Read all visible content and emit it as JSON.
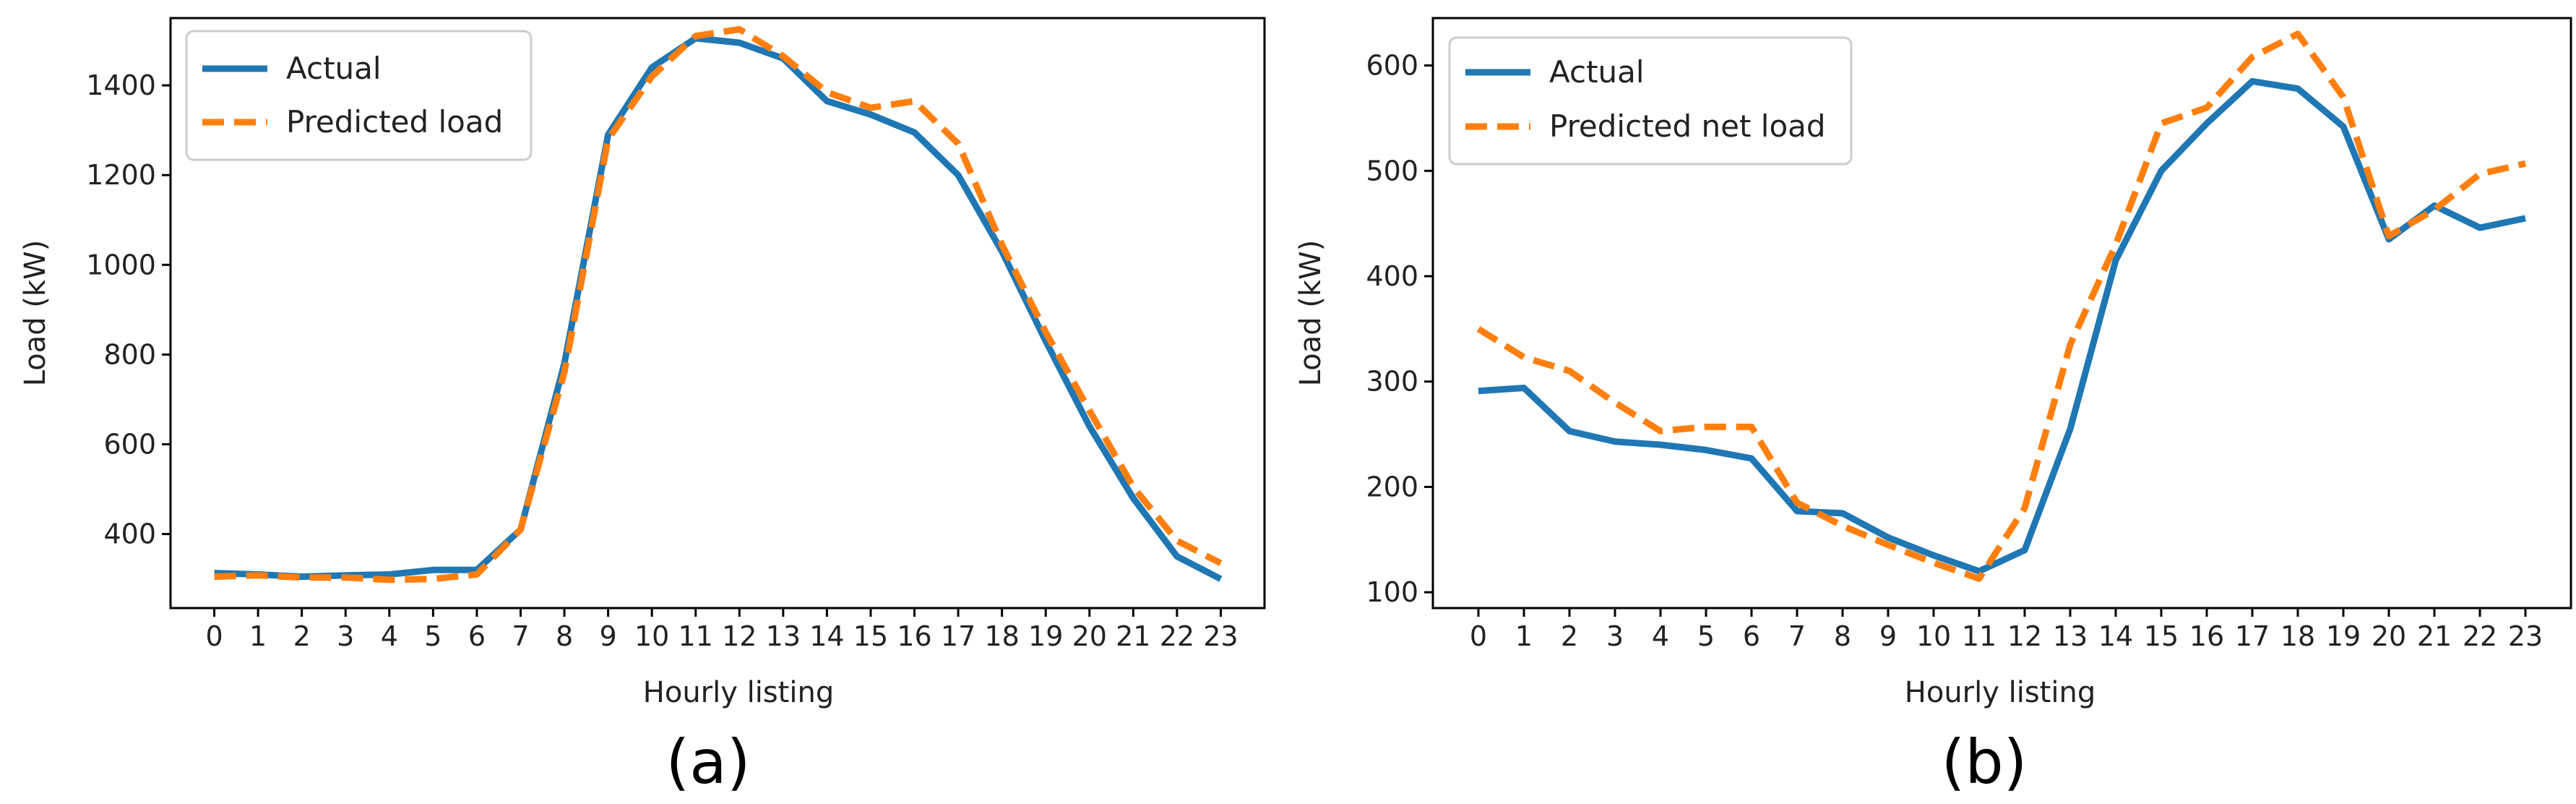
{
  "colors": {
    "actual": "#1f77b4",
    "predicted": "#ff7f0e"
  },
  "chart_data": [
    {
      "type": "line",
      "panel_label": "(a)",
      "xlabel": "Hourly listing",
      "ylabel": "Load (kW)",
      "x": [
        0,
        1,
        2,
        3,
        4,
        5,
        6,
        7,
        8,
        9,
        10,
        11,
        12,
        13,
        14,
        15,
        16,
        17,
        18,
        19,
        20,
        21,
        22,
        23
      ],
      "xlim": [
        -1,
        24
      ],
      "ylim": [
        235,
        1550
      ],
      "yticks": [
        400,
        600,
        800,
        1000,
        1200,
        1400
      ],
      "legend_position": "top-left",
      "series": [
        {
          "name": "Actual",
          "style": "solid",
          "values": [
            313,
            310,
            305,
            308,
            310,
            320,
            320,
            410,
            780,
            1290,
            1440,
            1505,
            1495,
            1460,
            1365,
            1335,
            1295,
            1200,
            1030,
            830,
            640,
            480,
            350,
            300
          ]
        },
        {
          "name": "Predicted load",
          "style": "dashed",
          "values": [
            305,
            308,
            303,
            303,
            298,
            300,
            310,
            410,
            760,
            1280,
            1420,
            1510,
            1525,
            1465,
            1385,
            1350,
            1365,
            1270,
            1045,
            850,
            675,
            505,
            385,
            335
          ]
        }
      ]
    },
    {
      "type": "line",
      "panel_label": "(b)",
      "xlabel": "Hourly listing",
      "ylabel": "Load (kW)",
      "x": [
        0,
        1,
        2,
        3,
        4,
        5,
        6,
        7,
        8,
        9,
        10,
        11,
        12,
        13,
        14,
        15,
        16,
        17,
        18,
        19,
        20,
        21,
        22,
        23
      ],
      "xlim": [
        -1,
        24
      ],
      "ylim": [
        85,
        645
      ],
      "yticks": [
        100,
        200,
        300,
        400,
        500,
        600
      ],
      "legend_position": "top-left",
      "series": [
        {
          "name": "Actual",
          "style": "solid",
          "values": [
            291,
            294,
            253,
            243,
            240,
            235,
            227,
            177,
            175,
            152,
            135,
            120,
            140,
            255,
            415,
            500,
            545,
            585,
            578,
            542,
            435,
            467,
            446,
            455
          ]
        },
        {
          "name": "Predicted net load",
          "style": "dashed",
          "values": [
            350,
            323,
            310,
            280,
            253,
            257,
            257,
            185,
            163,
            145,
            128,
            113,
            180,
            335,
            430,
            545,
            560,
            608,
            630,
            570,
            438,
            463,
            497,
            507
          ]
        }
      ]
    }
  ]
}
